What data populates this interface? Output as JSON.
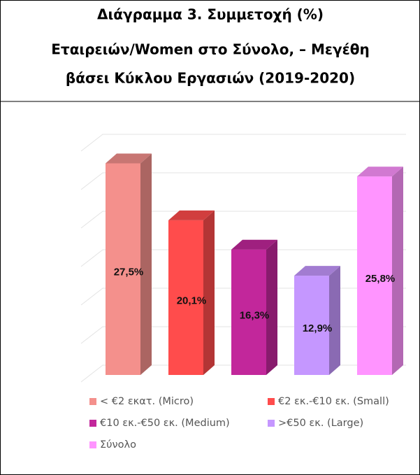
{
  "chart_data": {
    "type": "bar3d",
    "title": [
      "Διάγραμμα 3. Συμμετοχή (%)",
      "Εταιρειών/Women στο Σύνολο, – Μεγέθη",
      "βάσει Κύκλου Εργασιών (2019-2020)"
    ],
    "categories": [
      "< €2 εκατ. (Micro)",
      "€2 εκ.-€10 εκ. (Small)",
      "€10 εκ.-€50 εκ. (Medium)",
      ">€50 εκ. (Large)",
      "Σύνολο"
    ],
    "values": [
      27.5,
      20.1,
      16.3,
      12.9,
      25.8
    ],
    "value_labels": [
      "27,5%",
      "20,1%",
      "16,3%",
      "12,9%",
      "25,8%"
    ],
    "colors": [
      "#f4908c",
      "#ff4c4c",
      "#c2279b",
      "#c597ff",
      "#ff94ff"
    ],
    "ylim": [
      0,
      30
    ],
    "yticks": [
      0,
      5,
      10,
      15,
      20,
      25,
      30
    ],
    "grid": true
  }
}
